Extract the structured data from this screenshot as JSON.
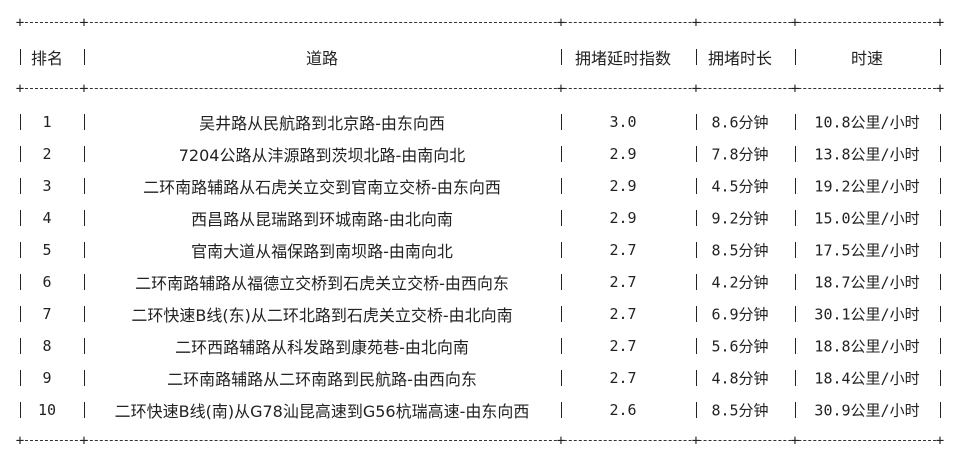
{
  "table": {
    "headers": [
      "排名",
      "道路",
      "拥堵延时指数",
      "拥堵时长",
      "时速"
    ],
    "rows": [
      [
        "1",
        "吴井路从民航路到北京路-由东向西",
        "3.0",
        "8.6分钟",
        "10.8公里/小时"
      ],
      [
        "2",
        "7204公路从沣源路到茨坝北路-由南向北",
        "2.9",
        "7.8分钟",
        "13.8公里/小时"
      ],
      [
        "3",
        "二环南路辅路从石虎关立交到官南立交桥-由东向西",
        "2.9",
        "4.5分钟",
        "19.2公里/小时"
      ],
      [
        "4",
        "西昌路从昆瑞路到环城南路-由北向南",
        "2.9",
        "9.2分钟",
        "15.0公里/小时"
      ],
      [
        "5",
        "官南大道从福保路到南坝路-由南向北",
        "2.7",
        "8.5分钟",
        "17.5公里/小时"
      ],
      [
        "6",
        "二环南路辅路从福德立交桥到石虎关立交桥-由西向东",
        "2.7",
        "4.2分钟",
        "18.7公里/小时"
      ],
      [
        "7",
        "二环快速B线(东)从二环北路到石虎关立交桥-由北向南",
        "2.7",
        "6.9分钟",
        "30.1公里/小时"
      ],
      [
        "8",
        "二环西路辅路从科发路到康苑巷-由北向南",
        "2.7",
        "5.6分钟",
        "18.8公里/小时"
      ],
      [
        "9",
        "二环南路辅路从二环南路到民航路-由西向东",
        "2.7",
        "4.8分钟",
        "18.4公里/小时"
      ],
      [
        "10",
        "二环快速B线(南)从G78汕昆高速到G56杭瑞高速-由东向西",
        "2.6",
        "8.5分钟",
        "30.9公里/小时"
      ]
    ]
  }
}
